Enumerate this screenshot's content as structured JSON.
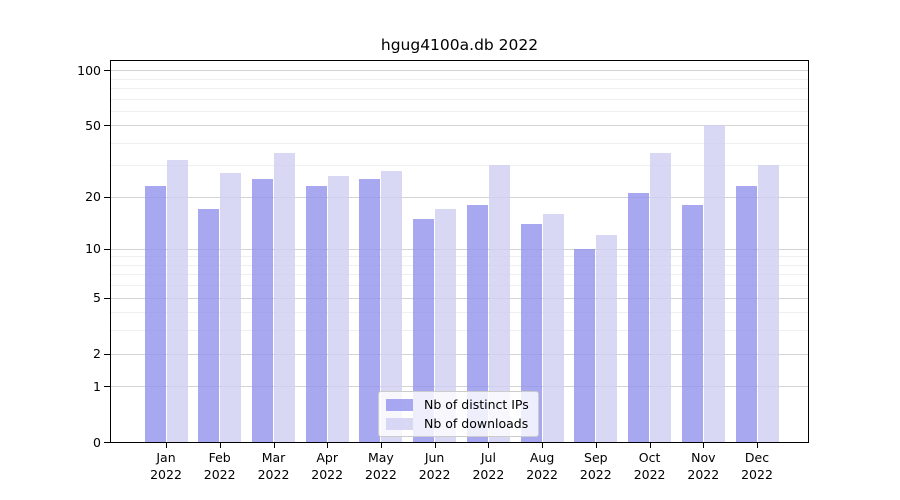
{
  "title": "hgug4100a.db 2022",
  "chart_data": {
    "type": "bar",
    "title": "hgug4100a.db 2022",
    "categories": [
      "Jan",
      "Feb",
      "Mar",
      "Apr",
      "May",
      "Jun",
      "Jul",
      "Aug",
      "Sep",
      "Oct",
      "Nov",
      "Dec"
    ],
    "category_year": "2022",
    "series": [
      {
        "name": "Nb of distinct IPs",
        "color": "#9292ee",
        "color_rendered": "#a8a8f1",
        "values": [
          23,
          17,
          25,
          23,
          25,
          15,
          18,
          14,
          10,
          21,
          18,
          23
        ]
      },
      {
        "name": "Nb of downloads",
        "color": "#cecef2",
        "color_rendered": "#d8d8f5",
        "values": [
          32,
          27,
          35,
          26,
          28,
          17,
          30,
          16,
          12,
          35,
          50,
          30
        ]
      }
    ],
    "xlabel": "",
    "ylabel": "",
    "yscale": "log1p",
    "ylim": [
      0,
      112
    ],
    "yticks": [
      0,
      1,
      2,
      5,
      10,
      20,
      50,
      100
    ],
    "minor_gridlines": [
      3,
      4,
      6,
      7,
      8,
      9,
      30,
      40,
      60,
      70,
      80,
      90
    ],
    "grid": true,
    "legend_position": "lower center"
  },
  "colors": {
    "background": "#ffffff",
    "axis": "#000000",
    "grid_major": "#d4d4d4",
    "grid_minor": "#efefef",
    "legend_border": "#cccccc"
  }
}
